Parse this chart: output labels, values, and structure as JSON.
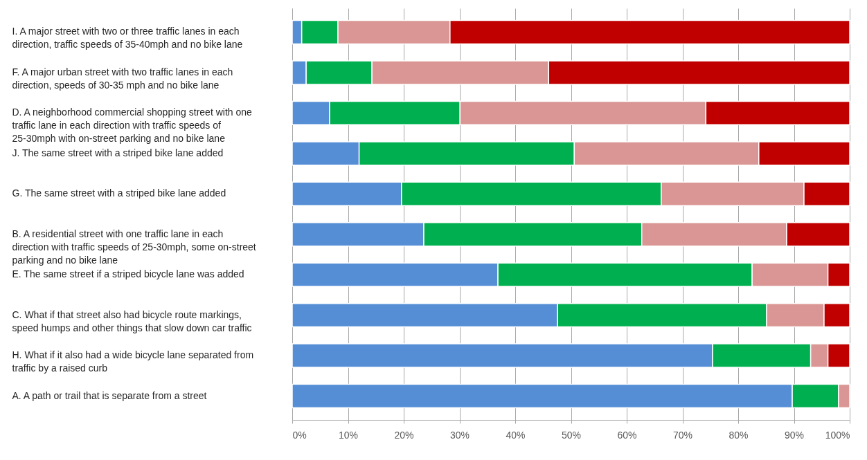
{
  "chart_data": {
    "type": "bar",
    "orientation": "horizontal",
    "stacked": true,
    "categories": [
      "I. A major street with two or three traffic lanes in each direction, traffic speeds of 35-40mph and no bike lane",
      "F. A major urban street with two traffic lanes in each direction, speeds of 30-35 mph and no bike lane",
      "D. A neighborhood commercial shopping street with one traffic lane in each direction with traffic speeds of 25-30mph with on-street parking and no bike lane",
      "J. The same street with a striped bike lane added",
      "G. The same street with a striped bike lane added",
      "B. A residential street with one traffic lane in each direction with traffic speeds of 25-30mph, some on-street parking and no bike lane",
      "E. The same street if a striped bicycle lane was added",
      "C. What if that street also had bicycle route markings, speed humps and other things that slow down car traffic",
      "H. What if it also had a wide bicycle lane separated from traffic by a raised curb",
      "A.    A path or trail that is separate from a street"
    ],
    "series": [
      {
        "color": "#558ed5",
        "values": [
          1.7,
          2.5,
          6.7,
          12.0,
          19.6,
          23.6,
          36.9,
          47.6,
          75.4,
          89.7
        ]
      },
      {
        "color": "#00b050",
        "values": [
          6.5,
          11.8,
          23.4,
          38.6,
          46.6,
          39.1,
          45.6,
          37.5,
          17.6,
          8.3
        ]
      },
      {
        "color": "#d99694",
        "values": [
          20.1,
          31.7,
          44.1,
          33.1,
          25.6,
          26.0,
          13.6,
          10.3,
          3.1,
          2.0
        ]
      },
      {
        "color": "#c00000",
        "values": [
          71.7,
          54.0,
          25.8,
          16.3,
          8.2,
          11.3,
          3.9,
          4.6,
          3.9,
          null
        ]
      }
    ],
    "xlim": [
      0,
      100
    ],
    "xticks": [
      {
        "value": 0,
        "label": "0%"
      },
      {
        "value": 10,
        "label": "10%"
      },
      {
        "value": 20,
        "label": "20%"
      },
      {
        "value": 30,
        "label": "30%"
      },
      {
        "value": 40,
        "label": "40%"
      },
      {
        "value": 50,
        "label": "50%"
      },
      {
        "value": 60,
        "label": "60%"
      },
      {
        "value": 70,
        "label": "70%"
      },
      {
        "value": 80,
        "label": "80%"
      },
      {
        "value": 90,
        "label": "90%"
      },
      {
        "value": 100,
        "label": "100%"
      }
    ],
    "grid": "x"
  }
}
